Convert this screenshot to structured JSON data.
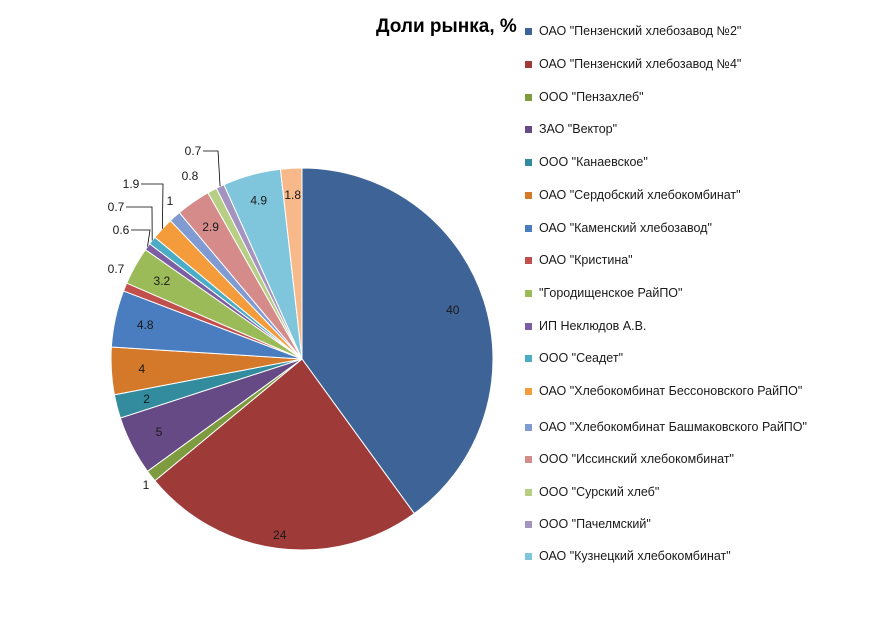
{
  "chart_data": {
    "type": "pie",
    "title": "Доли рынка, %",
    "legend_position": "right",
    "slices": [
      {
        "name": "ОАО \"Пензенский хлебозавод №2\"",
        "value": 40,
        "label": "40",
        "color": "#3e6497"
      },
      {
        "name": "ОАО \"Пензенский хлебозавод №4\"",
        "value": 24,
        "label": "24",
        "color": "#9e3b39"
      },
      {
        "name": "ООО \"Пензахлеб\"",
        "value": 1,
        "label": "1",
        "color": "#7f9b3f"
      },
      {
        "name": "ЗАО \"Вектор\"",
        "value": 5,
        "label": "5",
        "color": "#664a85"
      },
      {
        "name": "ООО \"Канаевское\"",
        "value": 2,
        "label": "2",
        "color": "#328c9e"
      },
      {
        "name": "ОАО \"Сердобский хлебокомбинат\"",
        "value": 4,
        "label": "4",
        "color": "#d4782a"
      },
      {
        "name": "ОАО \"Каменский хлебозавод\"",
        "value": 4.8,
        "label": "4.8",
        "color": "#4a7cc0"
      },
      {
        "name": "ОАО \"Кристина\"",
        "value": 0.7,
        "label": "0.7",
        "color": "#c1504d"
      },
      {
        "name": "\"Городищенское РайПО\"",
        "value": 3.2,
        "label": "3.2",
        "color": "#9bbb59"
      },
      {
        "name": "ИП Неклюдов А.В.",
        "value": 0.6,
        "label": "0.6",
        "color": "#7b5ea3"
      },
      {
        "name": "ООО \"Сеадет\"",
        "value": 0.7,
        "label": "0.7",
        "color": "#4bacc6"
      },
      {
        "name": "ОАО \"Хлебокомбинат Бессоновского РайПО\"",
        "value": 1.9,
        "label": "1.9",
        "color": "#f49c3b"
      },
      {
        "name": "ОАО \"Хлебокомбинат Башмаковского РайПО\"",
        "value": 1,
        "label": "1",
        "color": "#7f9bd1"
      },
      {
        "name": "ООО \"Иссинский хлебокомбинат\"",
        "value": 2.9,
        "label": "2.9",
        "color": "#d58b8a"
      },
      {
        "name": "ООО \"Сурский хлеб\"",
        "value": 0.8,
        "label": "0.8",
        "color": "#b7cf85"
      },
      {
        "name": "ООО \"Пачелмский\"",
        "value": 0.7,
        "label": "0.7",
        "color": "#a593bf"
      },
      {
        "name": "ОАО \"Кузнецкий хлебокомбинат\"",
        "value": 4.9,
        "label": "4.9",
        "color": "#7fc6dd"
      },
      {
        "name": "",
        "value": 1.8,
        "label": "1.8",
        "color": "#f8b98a"
      }
    ]
  }
}
